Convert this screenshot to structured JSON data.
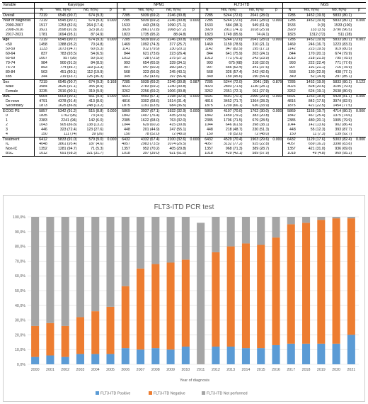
{
  "table": {
    "group_headers": [
      "Variable",
      "Karyotype",
      "NPM1",
      "FLT3-ITD",
      "NGS"
    ],
    "sub_headers": [
      "N",
      "Yes, n(%)",
      "No, n(%)",
      "p"
    ],
    "rows": [
      {
        "label": "Overall",
        "sub": false,
        "sec": true,
        "cells": [
          "7219",
          "6545 (90.7)",
          "674 (9.3)",
          "",
          "7285",
          "5039 (69.2)",
          "2246 (30.8)",
          "",
          "7285",
          "5244 (72.0)",
          "2041 (28.0)",
          "",
          "7285",
          "1452 (19.9)",
          "5833 (80.1)",
          ""
        ]
      },
      {
        "label": "Year of diagnosis",
        "sub": false,
        "sec": true,
        "cells": [
          "7219",
          "6545 (90.7)",
          "674 (9.3)",
          "0.000",
          "7285",
          "5039 (69.2)",
          "2246 (30.8)",
          "0.000",
          "7285",
          "5244 (72.0)",
          "2041 (28.0)",
          "0.000",
          "7285",
          "1452 (19.9)",
          "5833 (80.1)",
          "0.000"
        ]
      },
      {
        "label": "2000-2007",
        "sub": true,
        "sec": false,
        "cells": [
          "1517",
          "1253 (82.6)",
          "264 (17.4)",
          "",
          "1533",
          "443 (28.9)",
          "1090 (71.1)",
          "",
          "1533",
          "584 (38.1)",
          "949 (61.9)",
          "",
          "1533",
          "0 (0)",
          "1533 (100)",
          ""
        ]
      },
      {
        "label": "2008-2016",
        "sub": true,
        "sec": false,
        "cells": [
          "3921",
          "3598 (91.8)",
          "323 (8.2)",
          "",
          "3929",
          "2861 (72.8)",
          "1068 (27.2)",
          "",
          "3929",
          "2911 (74.1)",
          "1018 (25.9)",
          "",
          "3929",
          "133 (3.5)",
          "3790 (96.5)",
          ""
        ]
      },
      {
        "label": "2017-2021",
        "sub": true,
        "sec": false,
        "cells": [
          "1781",
          "1694 (95.1)",
          "87 (4.9)",
          "",
          "1823",
          "1735 (95.2)",
          "88 (4.8)",
          "",
          "1823",
          "1749 (95.9)",
          "74 (4.1)",
          "",
          "1823",
          "1312 (72)",
          "511 (28)",
          ""
        ]
      },
      {
        "label": "Age",
        "sub": false,
        "sec": true,
        "cells": [
          "7219",
          "6545 (90.7)",
          "674 (9.3)",
          "0.000",
          "7285",
          "5039 (69.2)",
          "2246 (30.8)",
          "0.000",
          "7285",
          "5244 (72.0)",
          "2041 (28.0)",
          "0.000",
          "7285",
          "1452 (19.9)",
          "5833 (80.1)",
          "0.001"
        ]
      },
      {
        "label": "<50",
        "sub": true,
        "sec": false,
        "cells": [
          "1458",
          "1388 (95.2)",
          "70 (4.8)",
          "",
          "1469",
          "1092 (74.3)",
          "377 (25.7)",
          "",
          "1469",
          "1159 (78.9)",
          "310 (21.1)",
          "",
          "1469",
          "246 (16.7)",
          "1223 (83.3)",
          ""
        ]
      },
      {
        "label": "50-59",
        "sub": true,
        "sec": false,
        "cells": [
          "1133",
          "1073 (94.7)",
          "60 (5.3)",
          "",
          "1141",
          "912 (79.9)",
          "230 (20.1)",
          "",
          "1142",
          "947 (82.9)",
          "195 (17.1)",
          "",
          "1142",
          "223 (19.5)",
          "919 (80.5)",
          ""
        ]
      },
      {
        "label": "60-64",
        "sub": true,
        "sec": false,
        "cells": [
          "837",
          "783 (93.5)",
          "54 (6.5)",
          "",
          "844",
          "621 (73.6)",
          "223 (26.4)",
          "",
          "844",
          "641 (75.9)",
          "203 (24.1)",
          "",
          "844",
          "170 (20.1)",
          "674 (79.9)",
          ""
        ]
      },
      {
        "label": "65-69",
        "sub": true,
        "sec": false,
        "cells": [
          "1007",
          "957 (95)",
          "50 (5.0)",
          "",
          "1013",
          "738 (72.9)",
          "275 (27.1)",
          "",
          "1013",
          "771 (76.1)",
          "242 (23.9)",
          "",
          "1013",
          "218 (21.5)",
          "795 (78.5)",
          ""
        ]
      },
      {
        "label": "70-74",
        "sub": true,
        "sec": false,
        "cells": [
          "984",
          "900 (91.5)",
          "84 (8.5)",
          "",
          "993",
          "654 (65.9)",
          "339 (34.1)",
          "",
          "993",
          "675 (68)",
          "318 (32.0)",
          "",
          "993",
          "222 (22.4)",
          "771 (77.6)",
          ""
        ]
      },
      {
        "label": "75-79",
        "sub": true,
        "sec": false,
        "cells": [
          "893",
          "774 (86.7)",
          "119 (13.3)",
          "",
          "907",
          "547 (60.3)",
          "360 (39.7)",
          "",
          "907",
          "566 (62.4)",
          "341 (37.6)",
          "",
          "907",
          "191 (21.1)",
          "716 (78.9)",
          ""
        ]
      },
      {
        "label": "80-84",
        "sub": true,
        "sec": false,
        "cells": [
          "563",
          "451 (80.1)",
          "112 (19.9)",
          "",
          "568",
          "323 (56.9)",
          "245 (43.1)",
          "",
          "568",
          "326 (57.4)",
          "242 (42.6)",
          "",
          "568",
          "130 (22.9)",
          "438 (77.1)",
          ""
        ]
      },
      {
        "label": "≥85",
        "sub": true,
        "sec": false,
        "cells": [
          "344",
          "219 (63.7)",
          "125 (36.3)",
          "",
          "349",
          "152 (43.6)",
          "197 (56.4)",
          "",
          "349",
          "159 (45.6)",
          "190 (54.4)",
          "",
          "349",
          "52 (14.9)",
          "297 (85.1)",
          ""
        ]
      },
      {
        "label": "Sex",
        "sub": false,
        "sec": true,
        "cells": [
          "7219",
          "6545 (90.7)",
          "674 (9.3)",
          "0.168",
          "7285",
          "5039 (69.2)",
          "2246 (30.8)",
          "0.987",
          "7285",
          "5244 (72.0)",
          "2041 (28)",
          "0.879",
          "7285",
          "1452 (19.9)",
          "5833 (80.1)",
          "0.123"
        ]
      },
      {
        "label": "Male",
        "sub": true,
        "sec": false,
        "cells": [
          "3984",
          "3626 (91.1)",
          "355 (8.9)",
          "",
          "4023",
          "2783 (69.2)",
          "1240 (30.8)",
          "",
          "4023",
          "2893 (71.9)",
          "1130 (28.1)",
          "",
          "4023",
          "828 (20.6)",
          "3195 (79.4)",
          ""
        ]
      },
      {
        "label": "Female",
        "sub": true,
        "sec": false,
        "cells": [
          "3235",
          "2916 (90.1)",
          "319 (9.9)",
          "",
          "3262",
          "2256 (69.2)",
          "1006 (30.8)",
          "",
          "3262",
          "2351 (72.1)",
          "911 (27.9)",
          "",
          "3262",
          "624 (19.1)",
          "2638 (80.9)",
          ""
        ]
      },
      {
        "label": "AML",
        "sub": false,
        "sec": true,
        "cells": [
          "6664",
          "6003 (90.1)",
          "661 (9.9)",
          "0.000",
          "6691",
          "4493 (67.1)",
          "2198 (32.9)",
          "0.000",
          "6691",
          "4691 (70.1)",
          "2000 (29.9)",
          "0.000",
          "6691",
          "1263 (18.9)",
          "5428 (81.1)",
          "0.000"
        ]
      },
      {
        "label": "De novo",
        "sub": true,
        "sec": false,
        "cells": [
          "4791",
          "4378 (91.4)",
          "413 (8.6)",
          "",
          "4816",
          "3302 (68.6)",
          "1514 (31.4)",
          "",
          "4816",
          "3452 (71.7)",
          "1364 (28.3)",
          "",
          "4816",
          "842 (17.5)",
          "3974 (82.5)",
          ""
        ]
      },
      {
        "label": "Secondary",
        "sub": true,
        "sec": false,
        "cells": [
          "1873",
          "1625 (86.8)",
          "248 (13.2)",
          "",
          "1875",
          "1191 (63.5)",
          "684 (36.5)",
          "",
          "1875",
          "1239 (66.1)",
          "636 (33.9)",
          "",
          "1875",
          "421 (22.5)",
          "1454 (77.5)",
          ""
        ]
      },
      {
        "label": "ECOG PS",
        "sub": false,
        "sec": true,
        "cells": [
          "5857",
          "5342 (91.2)",
          "515 (8.8)",
          "0.000",
          "5869",
          "3937 (67.1)",
          "1932 (32.9)",
          "0.000",
          "5869",
          "4107 (70.0)",
          "1762 (30.0)",
          "0.000",
          "5869",
          "1155 (19.7)",
          "4714 (80.3)",
          "0.000"
        ]
      },
      {
        "label": "0",
        "sub": true,
        "sec": false,
        "cells": [
          "1835",
          "1762 (96)",
          "73 (4.0)",
          "",
          "1842",
          "1407 (76.4)",
          "435 (23.6)",
          "",
          "1842",
          "1459 (79.2)",
          "383 (20.8)",
          "",
          "1842",
          "467 (25.4)",
          "1375 (74.6)",
          ""
        ]
      },
      {
        "label": "1",
        "sub": true,
        "sec": false,
        "cells": [
          "2383",
          "2241 (94)",
          "142 (6.0)",
          "",
          "2385",
          "1622 (68.0)",
          "763 (32.0)",
          "",
          "2385",
          "1706 (71.5)",
          "679 (28.5)",
          "",
          "2385",
          "480 (20.1)",
          "1905 (79.9)",
          ""
        ]
      },
      {
        "label": "2",
        "sub": true,
        "sec": false,
        "cells": [
          "1043",
          "905 (86.8)",
          "138 (13.2)",
          "",
          "1044",
          "629 (60.2)",
          "415 (39.8)",
          "",
          "1044",
          "646 (61.9)",
          "398 (38.1)",
          "",
          "1044",
          "142 (13.6)",
          "902 (86.4)",
          ""
        ]
      },
      {
        "label": "3",
        "sub": true,
        "sec": false,
        "cells": [
          "446",
          "323 (72.4)",
          "123 (27.6)",
          "",
          "448",
          "201 (44.9)",
          "247 (55.1)",
          "",
          "448",
          "218 (48.7)",
          "230 (51.3)",
          "",
          "448",
          "55 (12.3)",
          "393 (87.7)",
          ""
        ]
      },
      {
        "label": "4",
        "sub": true,
        "sec": false,
        "cells": [
          "150",
          "111 (74)",
          "39 (26)",
          "",
          "150",
          "78 (52.0)",
          "72 (48.0)",
          "",
          "150",
          "78 (52.0)",
          "72 (48.0)",
          "",
          "150",
          "11 (7.3)",
          "139 (92.7)",
          ""
        ]
      },
      {
        "label": "Treatment",
        "sub": false,
        "sec": true,
        "cells": [
          "6412",
          "5833 (91.0)",
          "579 (9.0)",
          "0.000",
          "6432",
          "4332 (67.4)",
          "2100 (32.6)",
          "0.000",
          "6432",
          "4529 (70.4)",
          "1903 (29.6)",
          "0.000",
          "6432",
          "1129 (17.6)",
          "5303 (82.4)",
          "0.000"
        ]
      },
      {
        "label": "IC",
        "sub": true,
        "sec": false,
        "cells": [
          "4048",
          "3861 (95.4)",
          "187 (4.6)",
          "",
          "4057",
          "2983 (73.5)",
          "1074 (26.5)",
          "",
          "4057",
          "3132 (77.2)",
          "925 (22.8)",
          "",
          "4057",
          "659 (16.2)",
          "3398 (83.8)",
          ""
        ]
      },
      {
        "label": "Non-IC",
        "sub": true,
        "sec": false,
        "cells": [
          "1352",
          "1281 (94.7)",
          "71 (5.3)",
          "",
          "1357",
          "952 (70.2)",
          "405 (29.8)",
          "",
          "1357",
          "968 (71.3)",
          "389 (28.7)",
          "",
          "1357",
          "421 (31.0)",
          "936 (69.0)",
          ""
        ]
      },
      {
        "label": "BSC",
        "sub": true,
        "sec": false,
        "cells": [
          "1012",
          "691 (68.3)",
          "321 (31.7)",
          "",
          "1018",
          "397 (39.0)",
          "621 (61.0)",
          "",
          "1018",
          "429 (42.1)",
          "589 (57.9)",
          "",
          "1018",
          "49 (4.8)",
          "969 (95.2)",
          ""
        ]
      }
    ]
  },
  "chart_data": {
    "type": "bar",
    "stacked": true,
    "title": "FLT3-ITD PCR test",
    "xlabel": "Year of diagnosis",
    "ylabel": "",
    "ylim": [
      0,
      100
    ],
    "y_ticks": [
      "0,0%",
      "10,0%",
      "20,0%",
      "30,0%",
      "40,0%",
      "50,0%",
      "60,0%",
      "70,0%",
      "80,0%",
      "90,0%",
      "100,0%"
    ],
    "grid": true,
    "legend_position": "bottom",
    "categories": [
      "2000",
      "2001",
      "2002",
      "2003",
      "2004",
      "2005",
      "2006",
      "2007",
      "2008",
      "2009",
      "2010",
      "2011",
      "2012",
      "2013",
      "2014",
      "2015",
      "2016",
      "2017",
      "2018",
      "2019",
      "2020",
      "2021"
    ],
    "series": [
      {
        "name": "FLT3-ITD Positive",
        "color": "#5b9bd5",
        "values": [
          5,
          6,
          5,
          7,
          7,
          7,
          11,
          10,
          11,
          10,
          12,
          0,
          12,
          12,
          11,
          11,
          13,
          14,
          14,
          14,
          14,
          20
        ]
      },
      {
        "name": "FLT3-ITD Negative",
        "color": "#ed7d31",
        "values": [
          21,
          22,
          21,
          25,
          29,
          32,
          42,
          55,
          57,
          59,
          59,
          0,
          64,
          68,
          71,
          70,
          73,
          81,
          82,
          84,
          85,
          79
        ]
      },
      {
        "name": "FLT3-ITD Not performed",
        "color": "#a5a5a5",
        "values": [
          74,
          72,
          74,
          68,
          64,
          61,
          47,
          35,
          32,
          31,
          29,
          96,
          24,
          20,
          18,
          19,
          14,
          5,
          4,
          2,
          1,
          1
        ]
      }
    ]
  }
}
